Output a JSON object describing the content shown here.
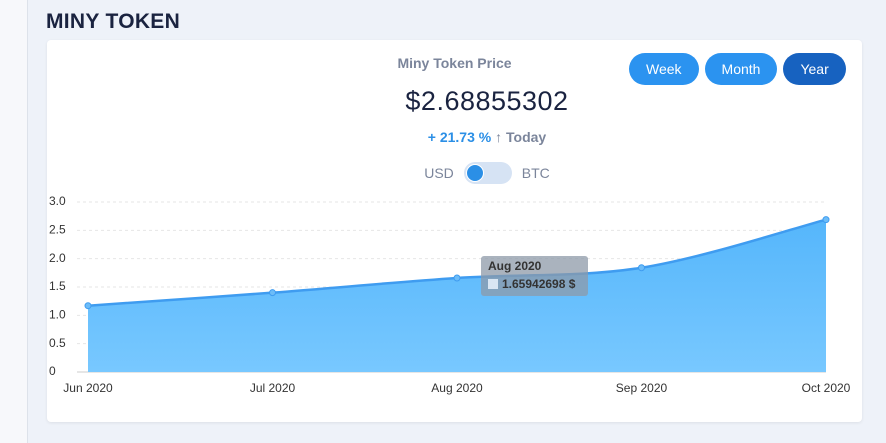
{
  "page_title": "MINY TOKEN",
  "card": {
    "subtitle": "Miny Token Price",
    "price": "$2.68855302",
    "change": "+ 21.73 %",
    "change_period": "Today",
    "toggle": {
      "left": "USD",
      "right": "BTC"
    },
    "buttons": [
      "Week",
      "Month",
      "Year"
    ],
    "active_button": "Year"
  },
  "chart_data": {
    "type": "area",
    "categories": [
      "Jun 2020",
      "Jul 2020",
      "Aug 2020",
      "Sep 2020",
      "Oct 2020"
    ],
    "series": [
      {
        "color": "#3f9cf0",
        "values": [
          1.17,
          1.4,
          1.65942698,
          1.84,
          2.68855302
        ]
      }
    ],
    "ylim": [
      0,
      3.0
    ],
    "yticks": [
      0,
      0.5,
      {
        "value": 1,
        "label": "1.0"
      },
      1.5,
      {
        "value": 2,
        "label": "2.0"
      },
      2.5,
      {
        "value": 3,
        "label": "3.0"
      }
    ],
    "grid": true,
    "tooltip": {
      "title": "Aug 2020",
      "label": "1.65942698 $"
    }
  }
}
